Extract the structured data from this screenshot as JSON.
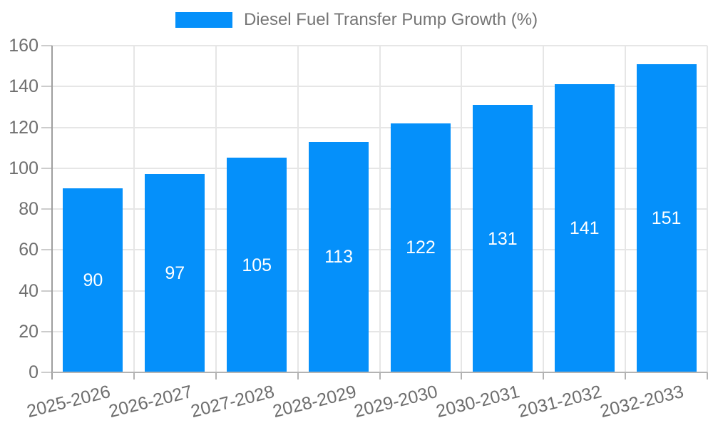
{
  "chart_data": {
    "type": "bar",
    "title": "Diesel Fuel Transfer Pump Growth (%)",
    "categories": [
      "2025-2026",
      "2026-2027",
      "2027-2028",
      "2028-2029",
      "2029-2030",
      "2030-2031",
      "2031-2032",
      "2032-2033"
    ],
    "values": [
      90,
      97,
      105,
      113,
      122,
      131,
      141,
      151
    ],
    "value_labels": [
      "90",
      "97",
      "105",
      "113",
      "122",
      "131",
      "141",
      "151"
    ],
    "xlabel": "",
    "ylabel": "",
    "ylim": [
      0,
      160
    ],
    "yticks": [
      0,
      20,
      40,
      60,
      80,
      100,
      120,
      140,
      160
    ],
    "grid": true,
    "legend_position": "top",
    "bar_color": "#0590fa",
    "value_label_color": "#ffffff",
    "axis_label_color": "#6e6e6e",
    "title_color": "#757575",
    "gridline_color": "#e6e6e6"
  },
  "legend": {
    "label": "Diesel Fuel Transfer Pump Growth (%)"
  }
}
